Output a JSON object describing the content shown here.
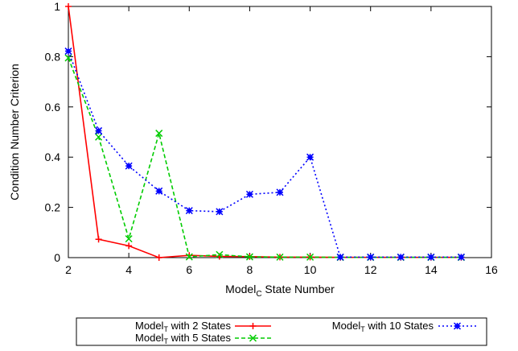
{
  "chart_data": {
    "type": "line",
    "xlabel": "Model",
    "xlabel_sub": "C",
    "xlabel_suffix": " State Number",
    "ylabel": "Condition Number Criterion",
    "xlim": [
      2,
      16
    ],
    "ylim": [
      0,
      1
    ],
    "xticks": [
      2,
      4,
      6,
      8,
      10,
      12,
      14,
      16
    ],
    "yticks": [
      0,
      0.2,
      0.4,
      0.6,
      0.8,
      1
    ],
    "ytick_labels": [
      "0",
      "0.2",
      "0.4",
      "0.6",
      "0.8",
      "1"
    ],
    "grid": false,
    "legend_position": "bottom",
    "series": [
      {
        "name_prefix": "Model",
        "name_sub": "T",
        "name_suffix": " with 2 States",
        "color": "#ff0000",
        "dash": "solid",
        "marker": "plus",
        "x": [
          2,
          3,
          4,
          5,
          6,
          7,
          8,
          9,
          10,
          11,
          12,
          13,
          14,
          15
        ],
        "values": [
          1.0,
          0.073,
          0.047,
          0.0,
          0.009,
          0.005,
          0.004,
          0.002,
          0.002,
          0.001,
          0.001,
          0.001,
          0.001,
          0.001
        ]
      },
      {
        "name_prefix": "Model",
        "name_sub": "T",
        "name_suffix": " with 5 States",
        "color": "#00cc00",
        "dash": "dashed",
        "marker": "x",
        "x": [
          2,
          3,
          4,
          5,
          6,
          7,
          8,
          9,
          10,
          11,
          12,
          13,
          14,
          15
        ],
        "values": [
          0.795,
          0.48,
          0.075,
          0.495,
          0.003,
          0.012,
          0.003,
          0.002,
          0.002,
          0.001,
          0.001,
          0.001,
          0.001,
          0.001
        ]
      },
      {
        "name_prefix": "Model",
        "name_sub": "T",
        "name_suffix": " with 10 States",
        "color": "#0000ff",
        "dash": "dotted",
        "marker": "box",
        "x": [
          2,
          3,
          4,
          5,
          6,
          7,
          8,
          9,
          10,
          11,
          12,
          13,
          14,
          15
        ],
        "values": [
          0.822,
          0.505,
          0.365,
          0.265,
          0.187,
          0.183,
          0.252,
          0.26,
          0.4,
          0.002,
          0.002,
          0.002,
          0.002,
          0.002
        ]
      }
    ]
  }
}
